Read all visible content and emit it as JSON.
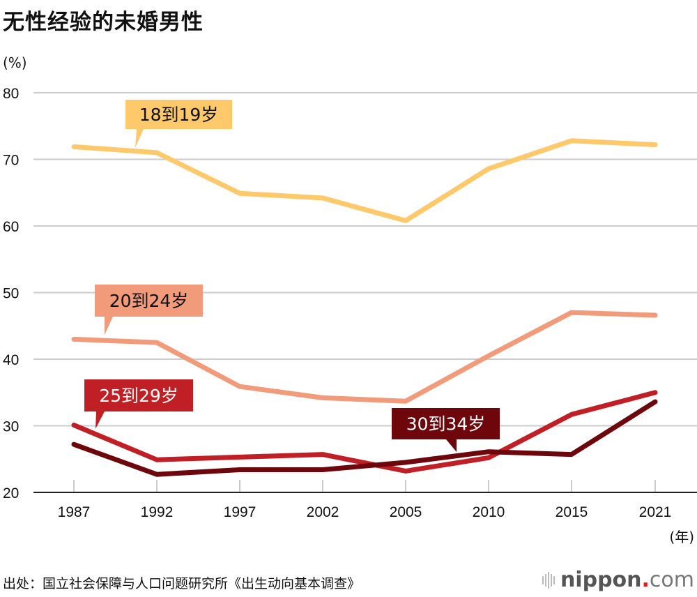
{
  "chart_data": {
    "type": "line",
    "title": "无性经验的未婚男性",
    "ylabel": "(%)",
    "xlabel": "(年)",
    "ylim": [
      20,
      80
    ],
    "yticks": [
      20,
      30,
      40,
      50,
      60,
      70,
      80
    ],
    "grid": true,
    "categories": [
      "1987",
      "1992",
      "1997",
      "2002",
      "2005",
      "2010",
      "2015",
      "2021"
    ],
    "series": [
      {
        "name": "18到19岁",
        "color": "#fdc96b",
        "label_color": "#111111",
        "values": [
          71.9,
          71.0,
          64.9,
          64.2,
          60.8,
          68.6,
          72.8,
          72.2
        ]
      },
      {
        "name": "20到24岁",
        "color": "#f19b7b",
        "label_color": "#111111",
        "values": [
          43.0,
          42.5,
          35.9,
          34.2,
          33.7,
          40.5,
          47.0,
          46.6
        ]
      },
      {
        "name": "25到29岁",
        "color": "#c02025",
        "label_color": "#ffffff",
        "values": [
          30.1,
          24.9,
          25.3,
          25.7,
          23.2,
          25.2,
          31.7,
          35.0
        ]
      },
      {
        "name": "30到34岁",
        "color": "#6e070b",
        "label_color": "#ffffff",
        "values": [
          27.2,
          22.7,
          23.4,
          23.4,
          24.5,
          26.1,
          25.7,
          33.6
        ]
      }
    ],
    "source": "出处：国立社会保障与人口问题研究所《出生动向基本调查》"
  },
  "branding": {
    "name": "nippon",
    "dot": ".",
    "suffix": "com"
  }
}
